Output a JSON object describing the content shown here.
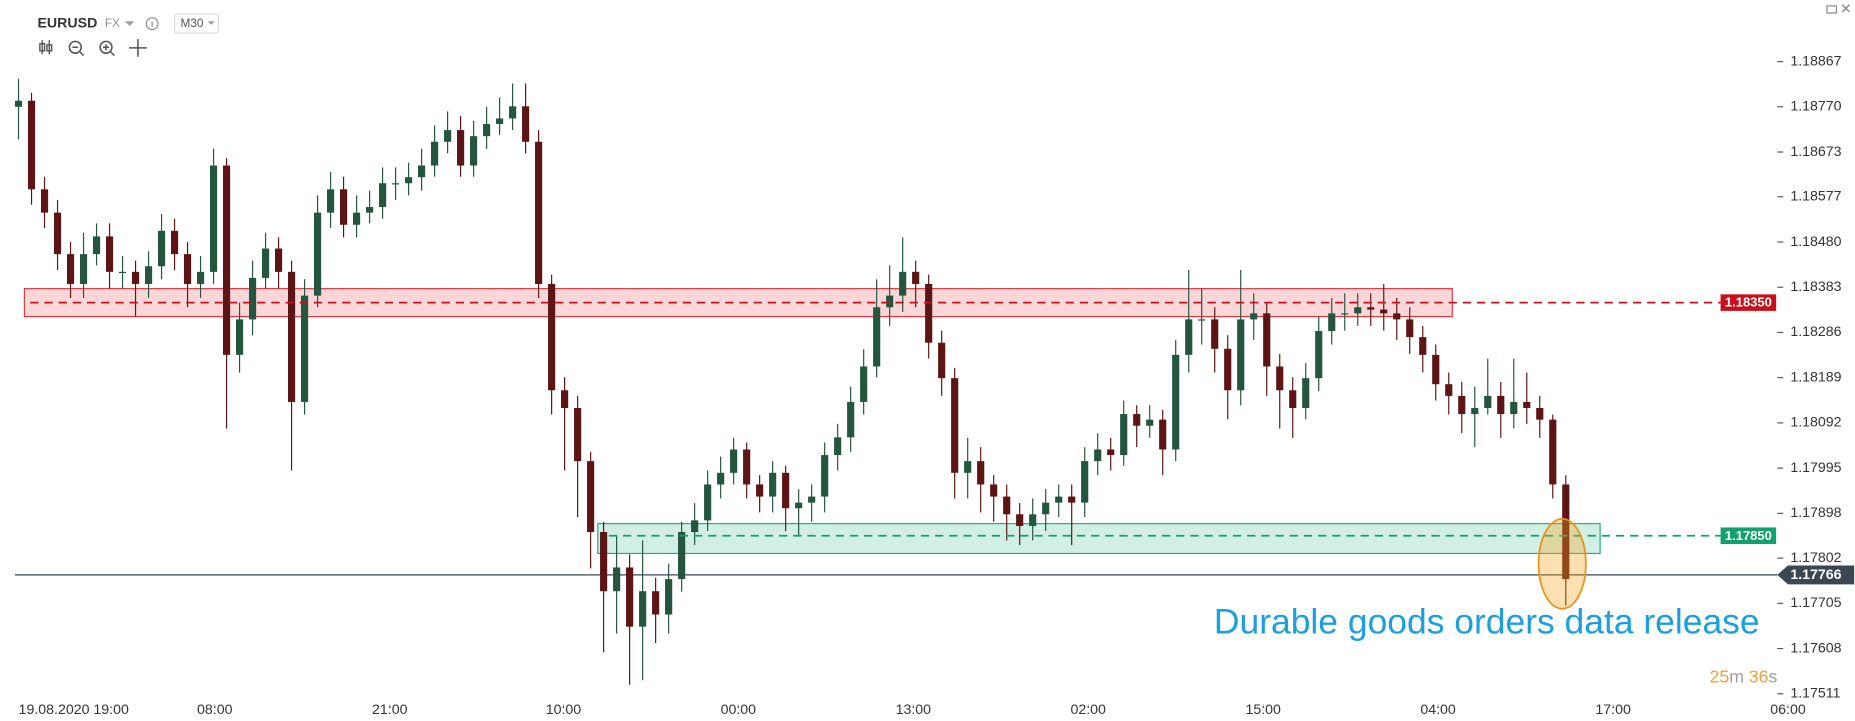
{
  "toolbar": {
    "symbol": "EURUSD",
    "market": "FX",
    "timeframe": "M30"
  },
  "chart_data": {
    "type": "candlestick",
    "up_color": "#24553f",
    "down_color": "#5c1414",
    "xlim": [
      -0.27,
      136.18
    ],
    "xticks": [
      {
        "value": 1.64,
        "label": "19.08.2020 19:00"
      },
      {
        "value": 15.09,
        "label": "08:00"
      },
      {
        "value": 28.55,
        "label": "21:00"
      },
      {
        "value": 41.91,
        "label": "10:00"
      },
      {
        "value": 55.36,
        "label": "00:00"
      },
      {
        "value": 68.82,
        "label": "13:00"
      },
      {
        "value": 82.27,
        "label": "02:00"
      },
      {
        "value": 95.73,
        "label": "15:00"
      },
      {
        "value": 109.18,
        "label": "04:00"
      },
      {
        "value": 122.64,
        "label": "17:00"
      },
      {
        "value": 136.09,
        "label": "06:00"
      }
    ],
    "ylim": [
      1.17478,
      1.18923
    ],
    "yticks": [
      1.18867,
      {
        "value": 1.1877,
        "label": "1.18770"
      },
      1.18673,
      1.18577,
      {
        "value": 1.1848,
        "label": "1.18480"
      },
      1.18383,
      1.18286,
      1.18189,
      1.18092,
      1.17995,
      1.17898,
      1.17802,
      1.17705,
      1.17608,
      1.17511
    ],
    "open": [
      1.1877,
      1.18783,
      1.18593,
      1.18543,
      1.18454,
      1.1839,
      1.18454,
      1.18492,
      1.18416,
      1.18416,
      1.1839,
      1.18428,
      1.18504,
      1.18454,
      1.1839,
      1.18416,
      1.18644,
      1.18238,
      1.18314,
      1.18403,
      1.18466,
      1.18416,
      1.18137,
      1.18365,
      1.18543,
      1.18593,
      1.18517,
      1.18543,
      1.18555,
      1.18606,
      1.18606,
      1.18619,
      1.18644,
      1.18695,
      1.1872,
      1.18644,
      1.18707,
      1.18733,
      1.18745,
      1.18771,
      1.18695,
      1.1839,
      1.18162,
      1.18124,
      1.1801,
      1.17858,
      1.17731,
      1.17782,
      1.17655,
      1.17731,
      1.17681,
      1.17757,
      1.17858,
      1.17883,
      1.1796,
      1.17985,
      1.18035,
      1.1796,
      1.17934,
      1.17985,
      1.17909,
      1.17921,
      1.17934,
      1.18023,
      1.18061,
      1.18137,
      1.18213,
      1.1834,
      1.18365,
      1.18416,
      1.1839,
      1.18264,
      1.18188,
      1.17985,
      1.1801,
      1.1796,
      1.17934,
      1.17896,
      1.17871,
      1.17896,
      1.17921,
      1.17934,
      1.17921,
      1.1801,
      1.18035,
      1.18023,
      1.18111,
      1.18086,
      1.18099,
      1.18035,
      1.18238,
      1.18314,
      1.18314,
      1.18251,
      1.18162,
      1.18314,
      1.18327,
      1.18213,
      1.18162,
      1.18124,
      1.18188,
      1.18289,
      1.18327,
      1.18327,
      1.1834,
      1.18335,
      1.18327,
      1.18314,
      1.18276,
      1.18238,
      1.18175,
      1.1815,
      1.18111,
      1.18124,
      1.1815,
      1.18111,
      1.18137,
      1.18124,
      1.18099,
      1.1796
    ],
    "high": [
      1.1883,
      1.188,
      1.1862,
      1.1857,
      1.1848,
      1.185,
      1.1852,
      1.1852,
      1.1845,
      1.1844,
      1.1846,
      1.1854,
      1.1853,
      1.1848,
      1.1845,
      1.1868,
      1.1866,
      1.1835,
      1.1844,
      1.185,
      1.1849,
      1.1844,
      1.184,
      1.1858,
      1.1863,
      1.1862,
      1.1858,
      1.1859,
      1.1864,
      1.1864,
      1.1865,
      1.1868,
      1.1873,
      1.1876,
      1.1875,
      1.1874,
      1.1877,
      1.1879,
      1.1882,
      1.1882,
      1.1872,
      1.1841,
      1.1819,
      1.1815,
      1.1803,
      1.1788,
      1.1785,
      1.1781,
      1.1784,
      1.1776,
      1.1779,
      1.1788,
      1.1792,
      1.1799,
      1.1802,
      1.1806,
      1.1805,
      1.1798,
      1.1801,
      1.18,
      1.1795,
      1.1796,
      1.1805,
      1.1809,
      1.1817,
      1.1825,
      1.184,
      1.1843,
      1.1849,
      1.1844,
      1.1841,
      1.1829,
      1.1821,
      1.1806,
      1.1804,
      1.1798,
      1.1796,
      1.1792,
      1.1793,
      1.1795,
      1.1796,
      1.1796,
      1.1804,
      1.1807,
      1.1806,
      1.1814,
      1.1813,
      1.1813,
      1.1812,
      1.1827,
      1.1842,
      1.1838,
      1.1834,
      1.1828,
      1.1842,
      1.1837,
      1.1835,
      1.1824,
      1.1819,
      1.1822,
      1.1832,
      1.1836,
      1.1837,
      1.1837,
      1.1837,
      1.1839,
      1.1836,
      1.1834,
      1.183,
      1.1826,
      1.182,
      1.1818,
      1.1817,
      1.1823,
      1.1818,
      1.1823,
      1.182,
      1.1815,
      1.1811,
      1.1798
    ],
    "low": [
      1.187,
      1.1856,
      1.1851,
      1.1842,
      1.1836,
      1.1836,
      1.1843,
      1.1838,
      1.1838,
      1.1832,
      1.1836,
      1.184,
      1.1842,
      1.1834,
      1.1836,
      1.1839,
      1.1808,
      1.182,
      1.1828,
      1.1838,
      1.1838,
      1.1799,
      1.1811,
      1.1834,
      1.1851,
      1.1849,
      1.1849,
      1.1852,
      1.1853,
      1.1857,
      1.1858,
      1.1859,
      1.1862,
      1.1867,
      1.1862,
      1.1862,
      1.1868,
      1.1871,
      1.1872,
      1.1867,
      1.1836,
      1.1811,
      1.1799,
      1.1789,
      1.1778,
      1.176,
      1.1764,
      1.1753,
      1.1754,
      1.1762,
      1.1764,
      1.1773,
      1.1783,
      1.1786,
      1.1793,
      1.1796,
      1.1793,
      1.179,
      1.179,
      1.1786,
      1.1785,
      1.1788,
      1.179,
      1.1799,
      1.1803,
      1.1811,
      1.1819,
      1.183,
      1.1833,
      1.1834,
      1.1823,
      1.1815,
      1.1793,
      1.1793,
      1.179,
      1.1788,
      1.1784,
      1.1783,
      1.1784,
      1.1786,
      1.1789,
      1.1783,
      1.1789,
      1.1798,
      1.1799,
      1.18,
      1.1804,
      1.1806,
      1.1798,
      1.1801,
      1.182,
      1.1826,
      1.182,
      1.181,
      1.1813,
      1.1827,
      1.1815,
      1.1808,
      1.1806,
      1.181,
      1.1816,
      1.1826,
      1.1829,
      1.183,
      1.183,
      1.1829,
      1.1827,
      1.1824,
      1.182,
      1.1814,
      1.1811,
      1.1807,
      1.1804,
      1.1811,
      1.1806,
      1.1808,
      1.1809,
      1.1806,
      1.1793,
      1.177
    ],
    "close": [
      1.18783,
      1.18593,
      1.18543,
      1.18454,
      1.1839,
      1.18454,
      1.18492,
      1.18416,
      1.18416,
      1.1839,
      1.18428,
      1.18504,
      1.18454,
      1.1839,
      1.18416,
      1.18644,
      1.18238,
      1.18314,
      1.18403,
      1.18466,
      1.18416,
      1.18137,
      1.18365,
      1.18543,
      1.18593,
      1.18517,
      1.18543,
      1.18555,
      1.18606,
      1.18606,
      1.18619,
      1.18644,
      1.18695,
      1.1872,
      1.18644,
      1.18707,
      1.18733,
      1.18745,
      1.18771,
      1.18695,
      1.1839,
      1.18162,
      1.18124,
      1.1801,
      1.17858,
      1.17731,
      1.17782,
      1.17655,
      1.17731,
      1.17681,
      1.17757,
      1.17858,
      1.17883,
      1.1796,
      1.17985,
      1.18035,
      1.1796,
      1.17934,
      1.17985,
      1.17909,
      1.17921,
      1.17934,
      1.18023,
      1.18061,
      1.18137,
      1.18213,
      1.1834,
      1.18365,
      1.18416,
      1.1839,
      1.18264,
      1.18188,
      1.17985,
      1.1801,
      1.1796,
      1.17934,
      1.17896,
      1.17871,
      1.17896,
      1.17921,
      1.17934,
      1.17921,
      1.1801,
      1.18035,
      1.18023,
      1.18111,
      1.18086,
      1.18099,
      1.18035,
      1.18238,
      1.18314,
      1.18314,
      1.18251,
      1.18162,
      1.18314,
      1.18327,
      1.18213,
      1.18162,
      1.18124,
      1.18188,
      1.18289,
      1.18327,
      1.18327,
      1.1834,
      1.18335,
      1.18327,
      1.18314,
      1.18276,
      1.18238,
      1.18175,
      1.1815,
      1.18111,
      1.18124,
      1.1815,
      1.18111,
      1.18137,
      1.18124,
      1.18099,
      1.1796,
      1.17757
    ],
    "zones": [
      {
        "top": 1.1838,
        "bottom": 1.1832,
        "start": 0.45,
        "end": 110.27,
        "color": "#e0393e"
      },
      {
        "top": 1.17876,
        "bottom": 1.17812,
        "start": 44.55,
        "end": 121.64,
        "color": "#1fae7e"
      }
    ],
    "levels": [
      {
        "value": 1.1835,
        "label": "1.18350",
        "start": 0.9,
        "color": "#c8101a"
      },
      {
        "value": 1.1785,
        "label": "1.17850",
        "start": 45.4,
        "color": "#13a06f"
      }
    ],
    "current": {
      "value": 1.17766,
      "label": "1.17766",
      "color": "#3a4650"
    },
    "annotation": "Durable goods orders data release",
    "timer": [
      "25",
      "m",
      "36",
      "s"
    ]
  }
}
